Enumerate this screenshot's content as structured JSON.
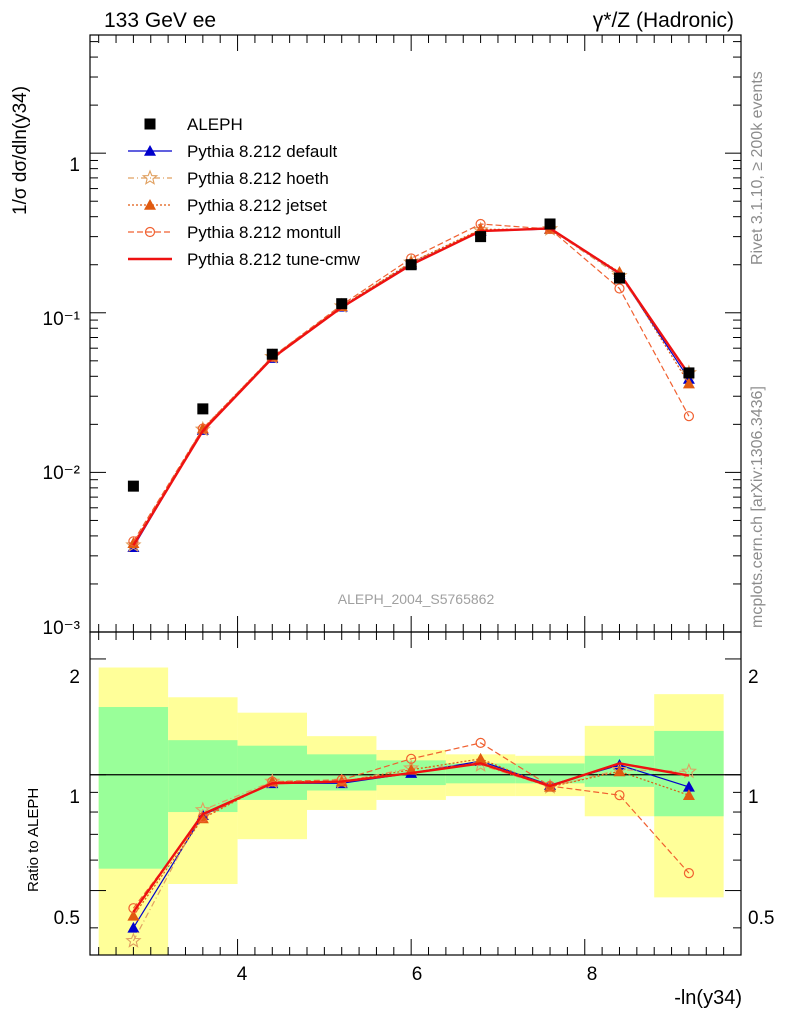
{
  "chart_data": {
    "type": "line",
    "header_left": "133 GeV ee",
    "header_right": "γ*/Z (Hadronic)",
    "side_text_top": "Rivet 3.1.10, ≥ 200k events",
    "side_text_bottom": "mcplots.cern.ch [arXiv:1306.3436]",
    "analysis_id": "ALEPH_2004_S5765862",
    "ylabel_main": "1/σ  dσ/dln(y34)",
    "ylabel_ratio": "Ratio to ALEPH",
    "xlabel": "-ln(y34)",
    "x_range": [
      2.3,
      9.8
    ],
    "y_range_main": [
      0.001,
      5.5
    ],
    "y_range_ratio": [
      0.34,
      2.35
    ],
    "x_ticks": [
      "4",
      "6",
      "8"
    ],
    "y_ticks_main": [
      "1",
      "10⁻¹",
      "10⁻²",
      "10⁻³"
    ],
    "y_ticks_ratio": [
      "2",
      "1",
      "0.5"
    ],
    "x": [
      2.8,
      3.6,
      4.4,
      5.2,
      6.0,
      6.8,
      7.6,
      8.4,
      9.2
    ],
    "bin_edges": [
      2.4,
      3.2,
      4.0,
      4.8,
      5.6,
      6.4,
      7.2,
      8.0,
      8.8,
      9.6
    ],
    "band_inner": [
      [
        0.57,
        1.5
      ],
      [
        0.8,
        1.23
      ],
      [
        0.86,
        1.19
      ],
      [
        0.91,
        1.13
      ],
      [
        0.94,
        1.09
      ],
      [
        0.95,
        1.07
      ],
      [
        0.95,
        1.07
      ],
      [
        0.93,
        1.12
      ],
      [
        0.78,
        1.3
      ]
    ],
    "band_outer": [
      [
        0.33,
        1.9
      ],
      [
        0.52,
        1.59
      ],
      [
        0.68,
        1.45
      ],
      [
        0.81,
        1.26
      ],
      [
        0.86,
        1.16
      ],
      [
        0.88,
        1.13
      ],
      [
        0.88,
        1.12
      ],
      [
        0.78,
        1.34
      ],
      [
        0.48,
        1.62
      ]
    ],
    "reference": {
      "name": "ALEPH",
      "color": "#000000",
      "values": [
        0.0082,
        0.025,
        0.055,
        0.114,
        0.2,
        0.3,
        0.36,
        0.165,
        0.042
      ]
    },
    "series": [
      {
        "name": "Pythia 8.212 default",
        "color": "#0000cc",
        "dash": "",
        "width": 1.2,
        "marker": "triangle",
        "values": [
          0.0034,
          0.0184,
          0.052,
          0.109,
          0.203,
          0.325,
          0.335,
          0.175,
          0.0385
        ],
        "ratio": [
          0.4,
          0.785,
          0.95,
          0.95,
          1.01,
          1.085,
          0.94,
          1.06,
          0.93
        ]
      },
      {
        "name": "Pythia 8.212 hoeth",
        "color": "#e0a060",
        "dash": "6,3,1,3",
        "width": 1.2,
        "marker": "star",
        "values": [
          0.0035,
          0.0186,
          0.053,
          0.11,
          0.207,
          0.33,
          0.335,
          0.17,
          0.042
        ],
        "ratio": [
          0.37,
          0.81,
          0.96,
          0.96,
          1.04,
          1.06,
          0.93,
          1.03,
          1.02
        ]
      },
      {
        "name": "Pythia 8.212 jetset",
        "color": "#e05a10",
        "dash": "2,2",
        "width": 1.2,
        "marker": "triangle-filled-orange",
        "values": [
          0.0036,
          0.0188,
          0.053,
          0.11,
          0.207,
          0.333,
          0.335,
          0.18,
          0.036
        ],
        "ratio": [
          0.43,
          0.77,
          0.96,
          0.96,
          1.03,
          1.1,
          0.93,
          1.02,
          0.885
        ]
      },
      {
        "name": "Pythia 8.212 montull",
        "color": "#f06030",
        "dash": "6,3",
        "width": 1.2,
        "marker": "circle-open",
        "values": [
          0.0037,
          0.0188,
          0.053,
          0.112,
          0.219,
          0.36,
          0.335,
          0.142,
          0.0225
        ],
        "ratio": [
          0.45,
          0.775,
          0.96,
          0.97,
          1.1,
          1.21,
          0.935,
          0.885,
          0.555
        ]
      },
      {
        "name": "Pythia 8.212 tune-cmw",
        "color": "#ee1111",
        "dash": "",
        "width": 2.4,
        "marker": "none",
        "values": [
          0.0035,
          0.0182,
          0.052,
          0.108,
          0.2,
          0.325,
          0.338,
          0.177,
          0.041
        ],
        "ratio": [
          0.44,
          0.79,
          0.95,
          0.96,
          1.01,
          1.07,
          0.935,
          1.07,
          0.995
        ]
      }
    ]
  }
}
